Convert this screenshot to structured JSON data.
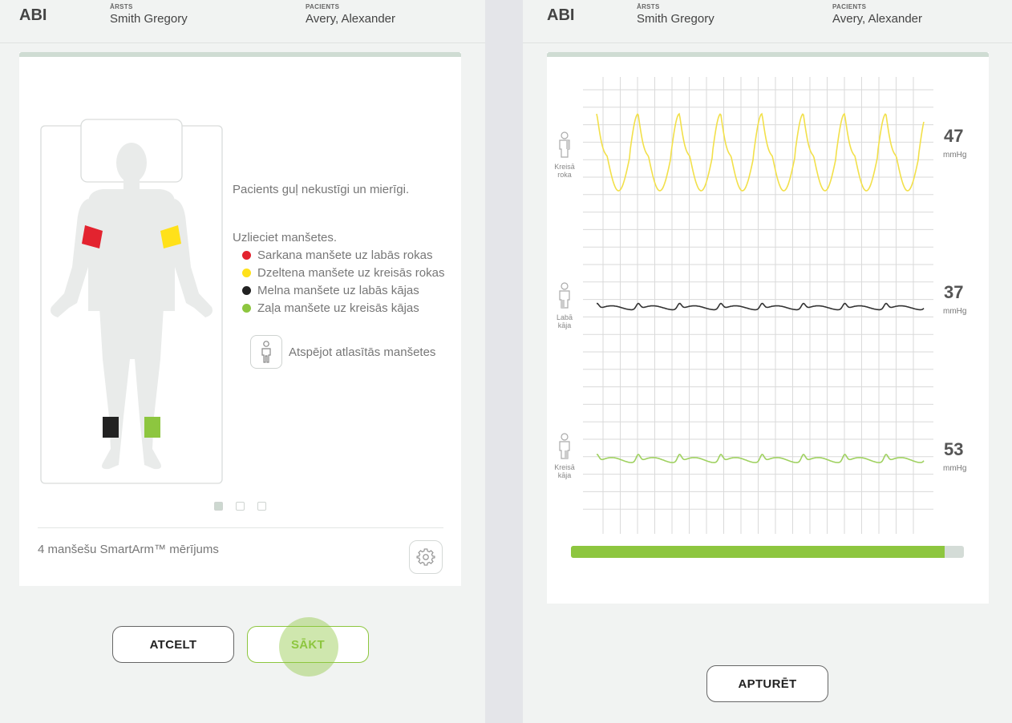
{
  "left": {
    "header": {
      "title": "ABI",
      "doctor_label": "ĀRSTS",
      "doctor_name": "Smith Gregory",
      "patient_label": "PACIENTS",
      "patient_name": "Avery, Alexander"
    },
    "instruction_lie": "Pacients guļ nekustīgi un mierīgi.",
    "instruction_cuffs": "Uzlieciet manšetes.",
    "cuffs": [
      {
        "color": "#e3232f",
        "label": "Sarkana manšete uz labās rokas"
      },
      {
        "color": "#ffe11a",
        "label": "Dzeltena manšete uz kreisās rokas"
      },
      {
        "color": "#222222",
        "label": "Melna manšete uz labās kājas"
      },
      {
        "color": "#8dc63f",
        "label": "Zaļa manšete uz kreisās kājas"
      }
    ],
    "unpair_label": "Atspējot atlasītās manšetes",
    "pager": {
      "total": 3,
      "active": 1
    },
    "mode_label": "4 manšešu SmartArm™ mērījums",
    "cancel_label": "ATCELT",
    "start_label": "SĀKT"
  },
  "right": {
    "header": {
      "title": "ABI",
      "doctor_label": "ĀRSTS",
      "doctor_name": "Smith Gregory",
      "patient_label": "PACIENTS",
      "patient_name": "Avery, Alexander"
    },
    "channels": [
      {
        "limb_line1": "Kreisā",
        "limb_line2": "roka",
        "value": "47",
        "unit": "mmHg",
        "color": "#f2e04a"
      },
      {
        "limb_line1": "Labā",
        "limb_line2": "kāja",
        "value": "37",
        "unit": "mmHg",
        "color": "#333333"
      },
      {
        "limb_line1": "Kreisā",
        "limb_line2": "kāja",
        "value": "53",
        "unit": "mmHg",
        "color": "#9fd160"
      }
    ],
    "progress": 0.95,
    "stop_label": "APTURĒT"
  },
  "colors": {
    "accent_green": "#8dc63f",
    "background": "#f1f3f2",
    "card": "#ffffff"
  }
}
